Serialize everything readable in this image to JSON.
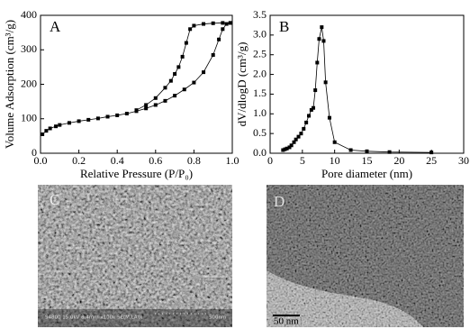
{
  "chart_data": [
    {
      "type": "line",
      "panel_label": "A",
      "xlabel": "Relative Pressure (P/P₀)",
      "ylabel": "Volume Adsorption (cm³/g)",
      "xlim": [
        0,
        1
      ],
      "ylim": [
        0,
        400
      ],
      "xticks": [
        {
          "value": 0,
          "label": "0.0"
        },
        0.2,
        0.4,
        0.6,
        0.8,
        {
          "value": 1,
          "label": "1.0"
        }
      ],
      "yticks": [
        0,
        100,
        200,
        300,
        400
      ],
      "series": [
        {
          "color": "#000000",
          "x": [
            0.01,
            0.03,
            0.05,
            0.08,
            0.1,
            0.15,
            0.2,
            0.25,
            0.3,
            0.35,
            0.4,
            0.45,
            0.5,
            0.55,
            0.6,
            0.65,
            0.7,
            0.75,
            0.8,
            0.85,
            0.9,
            0.93,
            0.95,
            0.97,
            0.99
          ],
          "values": [
            55,
            65,
            72,
            78,
            82,
            88,
            93,
            97,
            101,
            106,
            110,
            115,
            122,
            130,
            140,
            152,
            167,
            185,
            205,
            235,
            285,
            330,
            360,
            375,
            378
          ]
        },
        {
          "color": "#000000",
          "x": [
            0.99,
            0.95,
            0.9,
            0.85,
            0.8,
            0.78,
            0.76,
            0.74,
            0.72,
            0.7,
            0.68,
            0.65,
            0.6,
            0.55,
            0.5
          ],
          "values": [
            378,
            378,
            377,
            375,
            370,
            360,
            320,
            280,
            250,
            230,
            210,
            190,
            160,
            140,
            125
          ]
        }
      ]
    },
    {
      "type": "line",
      "panel_label": "B",
      "xlabel": "Pore diameter (nm)",
      "ylabel": "dV/dlogD (cm³/g)",
      "xlim": [
        0,
        30
      ],
      "ylim": [
        0,
        3.5
      ],
      "xticks": [
        0,
        5,
        10,
        15,
        20,
        25,
        30
      ],
      "yticks": [
        {
          "value": 0,
          "label": "0.0"
        },
        0.5,
        {
          "value": 1,
          "label": "1.0"
        },
        1.5,
        {
          "value": 2,
          "label": "2.0"
        },
        2.5,
        {
          "value": 3,
          "label": "3.0"
        },
        3.5
      ],
      "series": [
        {
          "color": "#000000",
          "x": [
            2,
            2.3,
            2.6,
            3,
            3.3,
            3.7,
            4,
            4.4,
            4.8,
            5.2,
            5.6,
            6,
            6.4,
            6.7,
            7,
            7.3,
            7.6,
            8,
            8.3,
            8.6,
            9.2,
            10,
            12.5,
            15,
            18.5,
            25
          ],
          "values": [
            0.08,
            0.1,
            0.12,
            0.15,
            0.2,
            0.28,
            0.35,
            0.42,
            0.5,
            0.62,
            0.78,
            0.95,
            1.1,
            1.15,
            1.6,
            2.3,
            2.9,
            3.2,
            2.85,
            1.8,
            0.9,
            0.28,
            0.08,
            0.05,
            0.03,
            0.02
          ]
        }
      ]
    }
  ],
  "images": [
    {
      "panel_label": "C",
      "caption": "S4800 15.0kV 8.4mm x100k SE(M,LA0)",
      "scale_label": "500nm"
    },
    {
      "panel_label": "D",
      "scale_label": "50 nm"
    }
  ]
}
